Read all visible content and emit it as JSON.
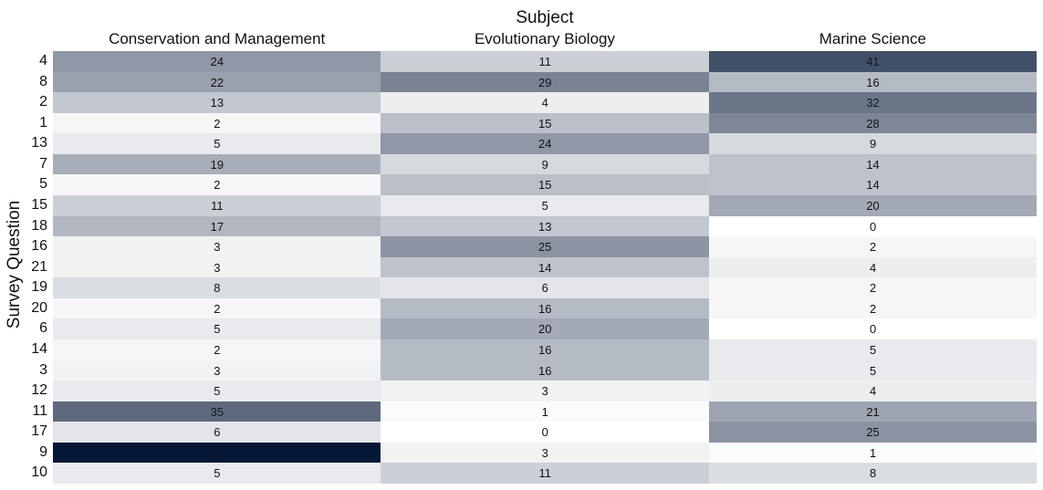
{
  "chart_data": {
    "type": "heatmap",
    "title": "Subject",
    "ylabel": "Survey Question",
    "columns": [
      "Conservation and Management",
      "Evolutionary Biology",
      "Marine Science"
    ],
    "rows": [
      "4",
      "8",
      "2",
      "1",
      "13",
      "7",
      "5",
      "15",
      "18",
      "16",
      "21",
      "19",
      "20",
      "6",
      "14",
      "3",
      "12",
      "11",
      "17",
      "9",
      "10"
    ],
    "values": [
      [
        24,
        11,
        41
      ],
      [
        22,
        29,
        16
      ],
      [
        13,
        4,
        32
      ],
      [
        2,
        15,
        28
      ],
      [
        5,
        24,
        9
      ],
      [
        19,
        9,
        14
      ],
      [
        2,
        15,
        14
      ],
      [
        11,
        5,
        20
      ],
      [
        17,
        13,
        0
      ],
      [
        3,
        25,
        2
      ],
      [
        3,
        14,
        4
      ],
      [
        8,
        6,
        2
      ],
      [
        2,
        16,
        2
      ],
      [
        5,
        20,
        0
      ],
      [
        2,
        16,
        5
      ],
      [
        3,
        16,
        5
      ],
      [
        5,
        3,
        4
      ],
      [
        35,
        1,
        21
      ],
      [
        6,
        0,
        25
      ],
      [
        54,
        3,
        1
      ],
      [
        5,
        11,
        8
      ]
    ],
    "color_scale": {
      "low": "#ffffff",
      "high": "#061838",
      "vmin": 0,
      "vmax": 54
    }
  }
}
